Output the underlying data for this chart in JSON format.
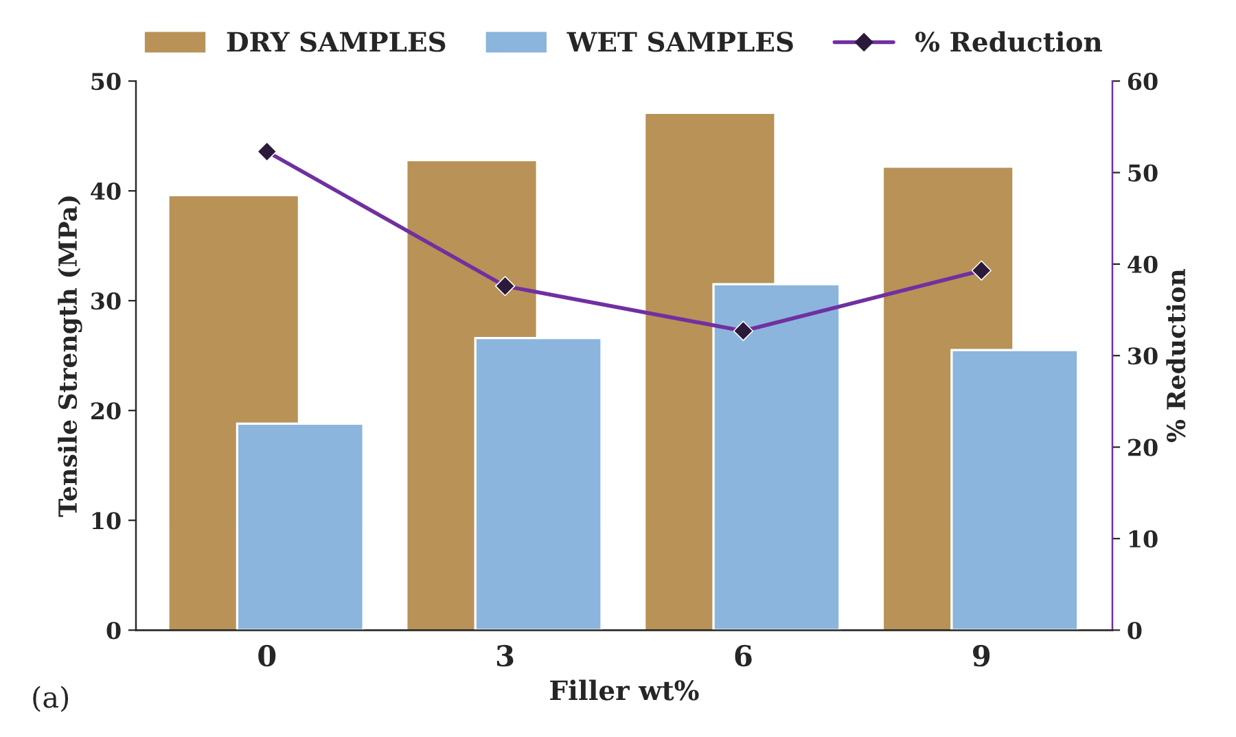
{
  "chart_data": {
    "type": "bar",
    "xlabel": "Filler wt%",
    "ylabel": "Tensile Strength (MPa)",
    "y2label": "% Reduction",
    "categories": [
      "0",
      "3",
      "6",
      "9"
    ],
    "series": [
      {
        "name": "DRY SAMPLES",
        "color": "#b89257",
        "values": [
          39.4,
          42.6,
          46.9,
          42.0
        ]
      },
      {
        "name": "WET SAMPLES",
        "color": "#8bb5dc",
        "values": [
          18.8,
          26.6,
          31.5,
          25.5
        ]
      },
      {
        "name": "% Reduction",
        "color": "#7030a0",
        "type": "line",
        "axis": "y2",
        "marker": "diamond",
        "values": [
          52.3,
          37.6,
          32.7,
          39.3
        ]
      }
    ],
    "ylim": [
      0,
      50
    ],
    "yticks": [
      0,
      10,
      20,
      30,
      40,
      50
    ],
    "y2lim": [
      0,
      60
    ],
    "y2ticks": [
      0,
      10,
      20,
      30,
      40,
      50,
      60
    ],
    "legend": "top",
    "grid": false,
    "annotations": [
      "(a)"
    ]
  }
}
